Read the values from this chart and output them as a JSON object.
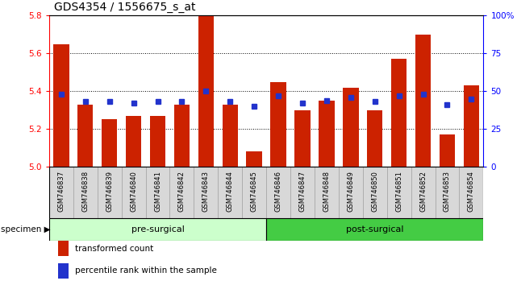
{
  "title": "GDS4354 / 1556675_s_at",
  "samples": [
    "GSM746837",
    "GSM746838",
    "GSM746839",
    "GSM746840",
    "GSM746841",
    "GSM746842",
    "GSM746843",
    "GSM746844",
    "GSM746845",
    "GSM746846",
    "GSM746847",
    "GSM746848",
    "GSM746849",
    "GSM746850",
    "GSM746851",
    "GSM746852",
    "GSM746853",
    "GSM746854"
  ],
  "transformed_count": [
    5.65,
    5.33,
    5.25,
    5.27,
    5.27,
    5.33,
    5.8,
    5.33,
    5.08,
    5.45,
    5.3,
    5.35,
    5.42,
    5.3,
    5.57,
    5.7,
    5.17,
    5.43
  ],
  "percentile_rank": [
    48,
    43,
    43,
    42,
    43,
    43,
    50,
    43,
    40,
    47,
    42,
    44,
    46,
    43,
    47,
    48,
    41,
    45
  ],
  "bar_color": "#cc2200",
  "dot_color": "#2233cc",
  "ylim_left": [
    5.0,
    5.8
  ],
  "ylim_right": [
    0,
    100
  ],
  "yticks_left": [
    5.0,
    5.2,
    5.4,
    5.6,
    5.8
  ],
  "yticks_right": [
    0,
    25,
    50,
    75,
    100
  ],
  "ytick_right_labels": [
    "0",
    "25",
    "50",
    "75",
    "100%"
  ],
  "pre_surgical_color": "#ccffcc",
  "post_surgical_color": "#44cc44",
  "specimen_label": "specimen",
  "legend_bar_label": "transformed count",
  "legend_dot_label": "percentile rank within the sample",
  "background_color": "#ffffff",
  "tick_bg_color": "#d8d8d8",
  "title_fontsize": 10,
  "bar_width": 0.65,
  "n_pre": 9,
  "n_post": 9
}
